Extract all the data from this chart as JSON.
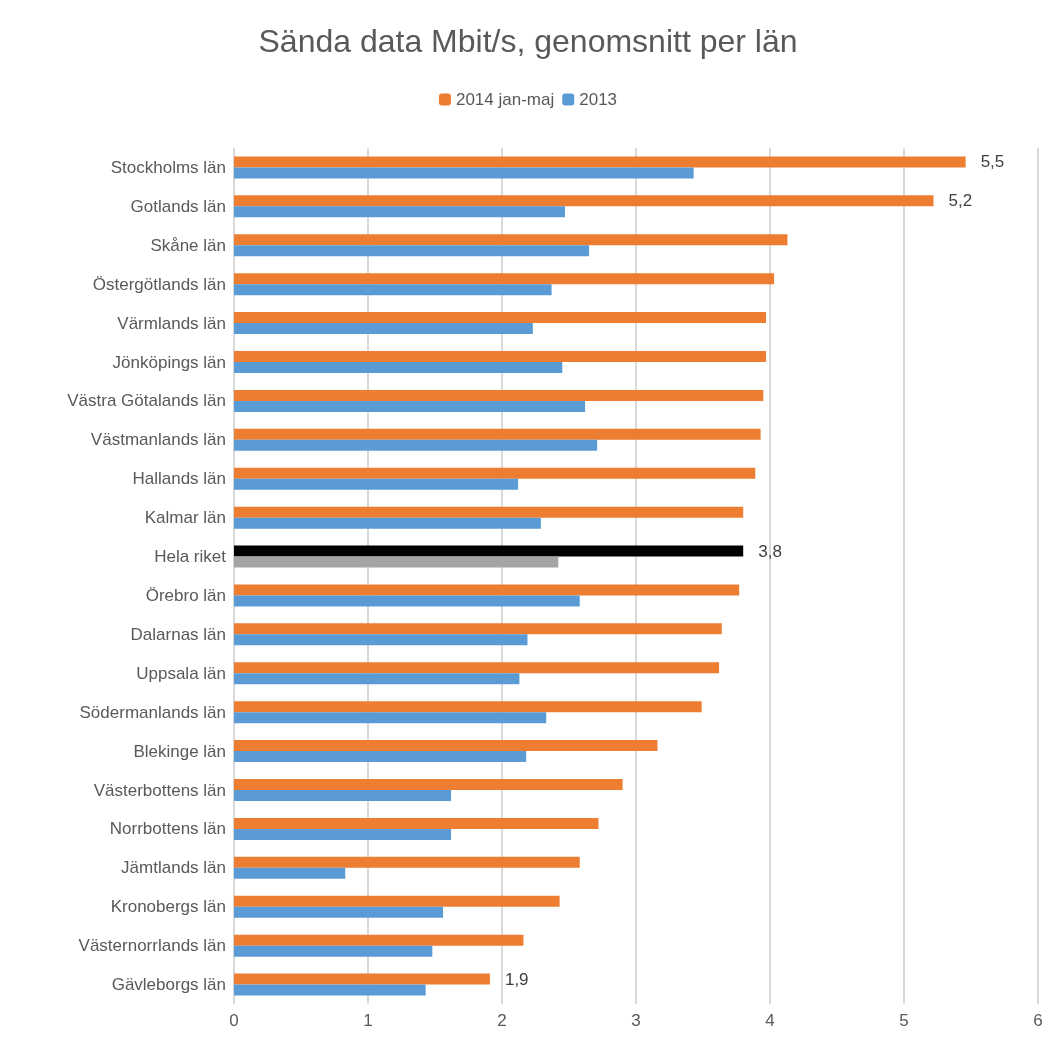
{
  "chart_data": {
    "type": "bar",
    "orientation": "horizontal",
    "title": "Sända data Mbit/s, genomsnitt per län",
    "categories": [
      "Stockholms län",
      "Gotlands län",
      "Skåne län",
      "Östergötlands län",
      "Värmlands län",
      "Jönköpings län",
      "Västra Götalands län",
      "Västmanlands län",
      "Hallands län",
      "Kalmar län",
      "Hela riket",
      "Örebro län",
      "Dalarnas län",
      "Uppsala län",
      "Södermanlands län",
      "Blekinge län",
      "Västerbottens län",
      "Norrbottens län",
      "Jämtlands län",
      "Kronobergs län",
      "Västernorrlands län",
      "Gävleborgs län"
    ],
    "series": [
      {
        "name": "2014 jan-maj",
        "color": "#ed7d31",
        "colors": [
          "#ed7d31",
          "#ed7d31",
          "#ed7d31",
          "#ed7d31",
          "#ed7d31",
          "#ed7d31",
          "#ed7d31",
          "#ed7d31",
          "#ed7d31",
          "#ed7d31",
          "#000000",
          "#ed7d31",
          "#ed7d31",
          "#ed7d31",
          "#ed7d31",
          "#ed7d31",
          "#ed7d31",
          "#ed7d31",
          "#ed7d31",
          "#ed7d31",
          "#ed7d31",
          "#ed7d31"
        ],
        "values": [
          5.46,
          5.22,
          4.13,
          4.03,
          3.97,
          3.97,
          3.95,
          3.93,
          3.89,
          3.8,
          3.8,
          3.77,
          3.64,
          3.62,
          3.49,
          3.16,
          2.9,
          2.72,
          2.58,
          2.43,
          2.16,
          1.91
        ],
        "value_labels": [
          "5,5",
          "5,2",
          null,
          null,
          null,
          null,
          null,
          null,
          null,
          null,
          "3,8",
          null,
          null,
          null,
          null,
          null,
          null,
          null,
          null,
          null,
          null,
          "1,9"
        ]
      },
      {
        "name": "2013",
        "color": "#5b9bd5",
        "colors": [
          "#5b9bd5",
          "#5b9bd5",
          "#5b9bd5",
          "#5b9bd5",
          "#5b9bd5",
          "#5b9bd5",
          "#5b9bd5",
          "#5b9bd5",
          "#5b9bd5",
          "#5b9bd5",
          "#a5a5a5",
          "#5b9bd5",
          "#5b9bd5",
          "#5b9bd5",
          "#5b9bd5",
          "#5b9bd5",
          "#5b9bd5",
          "#5b9bd5",
          "#5b9bd5",
          "#5b9bd5",
          "#5b9bd5",
          "#5b9bd5"
        ],
        "values": [
          3.43,
          2.47,
          2.65,
          2.37,
          2.23,
          2.45,
          2.62,
          2.71,
          2.12,
          2.29,
          2.42,
          2.58,
          2.19,
          2.13,
          2.33,
          2.18,
          1.62,
          1.62,
          0.83,
          1.56,
          1.48,
          1.43
        ]
      }
    ],
    "xlim": [
      0,
      6
    ],
    "xticks": [
      0,
      1,
      2,
      3,
      4,
      5,
      6
    ],
    "grid": "x",
    "legend": "top"
  }
}
